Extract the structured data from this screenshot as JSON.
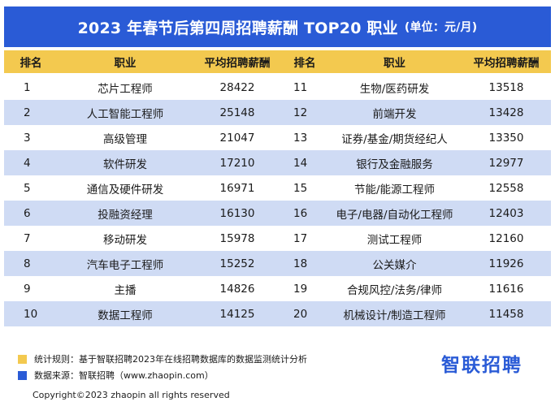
{
  "title": "2023 年春节后第四周招聘薪酬 TOP20 职业",
  "unit": "(单位：元/月)",
  "headers": {
    "rank": "排名",
    "job": "职业",
    "salary": "平均招聘薪酬",
    "rank2": "排名",
    "job2": "职业",
    "salary2": "平均招聘薪酬"
  },
  "chart_data": {
    "type": "table",
    "title": "2023 年春节后第四周招聘薪酬 TOP20 职业",
    "unit": "元/月",
    "columns": [
      "排名",
      "职业",
      "平均招聘薪酬"
    ],
    "rows": [
      {
        "rank": "1",
        "job": "芯片工程师",
        "salary": "28422"
      },
      {
        "rank": "2",
        "job": "人工智能工程师",
        "salary": "25148"
      },
      {
        "rank": "3",
        "job": "高级管理",
        "salary": "21047"
      },
      {
        "rank": "4",
        "job": "软件研发",
        "salary": "17210"
      },
      {
        "rank": "5",
        "job": "通信及硬件研发",
        "salary": "16971"
      },
      {
        "rank": "6",
        "job": "投融资经理",
        "salary": "16130"
      },
      {
        "rank": "7",
        "job": "移动研发",
        "salary": "15978"
      },
      {
        "rank": "8",
        "job": "汽车电子工程师",
        "salary": "15252"
      },
      {
        "rank": "9",
        "job": "主播",
        "salary": "14826"
      },
      {
        "rank": "10",
        "job": "数据工程师",
        "salary": "14125"
      },
      {
        "rank": "11",
        "job": "生物/医药研发",
        "salary": "13518"
      },
      {
        "rank": "12",
        "job": "前端开发",
        "salary": "13428"
      },
      {
        "rank": "13",
        "job": "证券/基金/期货经纪人",
        "salary": "13350"
      },
      {
        "rank": "14",
        "job": "银行及金融服务",
        "salary": "12977"
      },
      {
        "rank": "15",
        "job": "节能/能源工程师",
        "salary": "12558"
      },
      {
        "rank": "16",
        "job": "电子/电器/自动化工程师",
        "salary": "12403"
      },
      {
        "rank": "17",
        "job": "测试工程师",
        "salary": "12160"
      },
      {
        "rank": "18",
        "job": "公关媒介",
        "salary": "11926"
      },
      {
        "rank": "19",
        "job": "合规风控/法务/律师",
        "salary": "11616"
      },
      {
        "rank": "20",
        "job": "机械设计/制造工程师",
        "salary": "11458"
      }
    ]
  },
  "notes": {
    "rule": "统计规则：基于智联招聘2023年在线招聘数据库的数据监测统计分析",
    "source": "数据来源：智联招聘（www.zhaopin.com）"
  },
  "logo_text": "智联招聘",
  "copyright": "Copyright©2023 zhaopin all rights reserved",
  "colors": {
    "brand_blue": "#2a5bd6",
    "header_yellow": "#f3c94f",
    "stripe_blue": "#cfdbf4"
  }
}
